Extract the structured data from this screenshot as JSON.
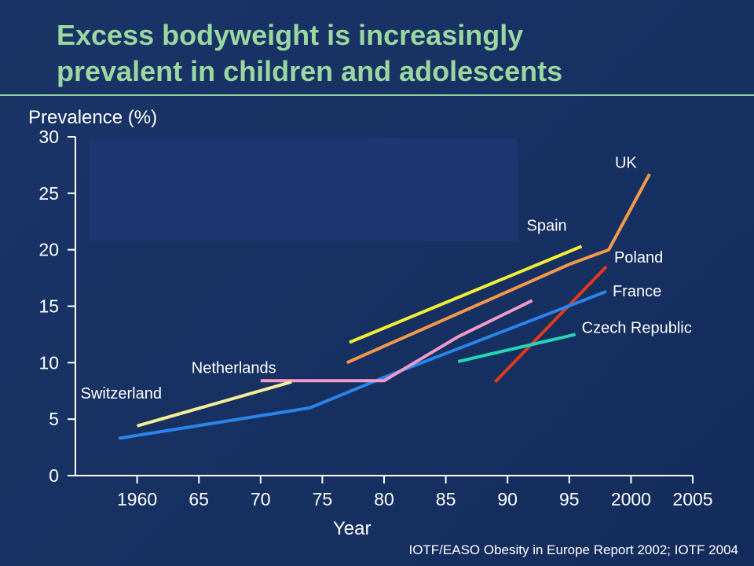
{
  "slide": {
    "title_line1": "Excess bodyweight is increasingly",
    "title_line2": "prevalent in children and adolescents",
    "source": "IOTF/EASO Obesity in Europe Report 2002; IOTF 2004"
  },
  "colors": {
    "background": "#17305f",
    "title": "#99d8a0",
    "text": "#ffffff",
    "overlay_box": "#1f3571"
  },
  "chart_data": {
    "type": "line",
    "title": "",
    "xlabel": "Year",
    "ylabel": "Prevalence (%)",
    "xlim": [
      1955,
      2005
    ],
    "ylim": [
      0,
      30
    ],
    "xticks": [
      1960,
      1965,
      1970,
      1975,
      1980,
      1985,
      1990,
      1995,
      2000,
      2005
    ],
    "xtick_labels": [
      "1960",
      "65",
      "70",
      "75",
      "80",
      "85",
      "90",
      "95",
      "2000",
      "2005"
    ],
    "yticks": [
      0,
      5,
      10,
      15,
      20,
      25,
      30
    ],
    "grid": false,
    "legend": "inline labels",
    "series": [
      {
        "name": "UK",
        "color": "#f59a4a",
        "points": [
          [
            1977,
            10
          ],
          [
            1995,
            18.7
          ],
          [
            1998.2,
            20
          ],
          [
            2001.5,
            26.7
          ]
        ]
      },
      {
        "name": "Spain",
        "color": "#f2f035",
        "points": [
          [
            1977.2,
            11.8
          ],
          [
            1996,
            20.3
          ]
        ]
      },
      {
        "name": "Poland",
        "color": "#e03a1a",
        "points": [
          [
            1989,
            8.3
          ],
          [
            1998,
            18.5
          ]
        ]
      },
      {
        "name": "France",
        "color": "#2a84ea",
        "points": [
          [
            1958.5,
            3.3
          ],
          [
            1974,
            6
          ],
          [
            1980,
            8.7
          ],
          [
            1998,
            16.3
          ]
        ]
      },
      {
        "name": "Czech Republic",
        "color": "#22d8b8",
        "points": [
          [
            1986,
            10.1
          ],
          [
            1995.5,
            12.5
          ]
        ]
      },
      {
        "name": "Netherlands",
        "color": "#f09ac8",
        "points": [
          [
            1970,
            8.4
          ],
          [
            1980,
            8.4
          ],
          [
            1986,
            12.3
          ],
          [
            1992,
            15.5
          ]
        ]
      },
      {
        "name": "Switzerland",
        "color": "#f5ef98",
        "points": [
          [
            1960,
            4.4
          ],
          [
            1972.5,
            8.3
          ]
        ]
      }
    ]
  }
}
